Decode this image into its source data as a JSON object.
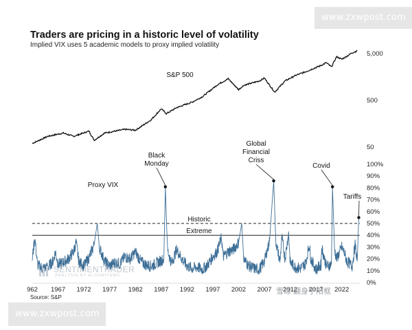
{
  "watermark_top": "www.zxwpost.com",
  "watermark_bottom": "www.zxwpost.com",
  "title": "Traders are pricing in a historic level of volatility",
  "subtitle": "Implied VIX uses 5 academic models to proxy implied volatility",
  "source": "Source: S&P",
  "brand": {
    "name": "SENTIMENTRADER",
    "tagline": "ANALYSIS BY ALGORITHMS"
  },
  "cn_watermark": "雪球 翻身宁阳框",
  "chart_data": [
    {
      "type": "line",
      "label": "S&P 500",
      "scale": "log",
      "ytick_labels": [
        "5,000",
        "500",
        "50"
      ],
      "ytick_values": [
        5000,
        500,
        50
      ],
      "x": [
        1962,
        1965,
        1968,
        1970,
        1973,
        1974,
        1976,
        1980,
        1982,
        1985,
        1987,
        1988,
        1990,
        1993,
        1995,
        1998,
        2000,
        2002,
        2003,
        2006,
        2007,
        2009,
        2011,
        2013,
        2015,
        2018,
        2019,
        2020,
        2021,
        2022,
        2023,
        2024,
        2025
      ],
      "y": [
        60,
        85,
        100,
        85,
        110,
        70,
        100,
        120,
        115,
        190,
        330,
        260,
        350,
        460,
        600,
        1100,
        1450,
        850,
        1050,
        1300,
        1500,
        750,
        1300,
        1700,
        2050,
        2800,
        3200,
        2600,
        4300,
        3800,
        4400,
        5200,
        5700
      ]
    },
    {
      "type": "line",
      "label": "Proxy VIX",
      "ylim": [
        0,
        100
      ],
      "ytick_labels": [
        "0%",
        "10%",
        "20%",
        "30%",
        "40%",
        "50%",
        "60%",
        "70%",
        "80%",
        "90%",
        "100%"
      ],
      "xtick_labels": [
        "962",
        "1967",
        "1972",
        "1977",
        "1982",
        "1987",
        "1992",
        "1997",
        "2002",
        "2007",
        "2012",
        "2017",
        "2022"
      ],
      "reference_lines": [
        {
          "label": "Historic",
          "value": 50,
          "style": "dashed"
        },
        {
          "label": "Extreme",
          "value": 40,
          "style": "solid"
        }
      ],
      "annotations": [
        {
          "label": "Black Monday",
          "x": 1987.8,
          "y": 81
        },
        {
          "label": "Global Financial Crisis",
          "x": 2008.8,
          "y": 86
        },
        {
          "label": "Covid",
          "x": 2020.2,
          "y": 81
        },
        {
          "label": "Tariffs",
          "x": 2025.3,
          "y": 55
        }
      ],
      "x": [
        1962,
        1962.5,
        1963,
        1964,
        1965,
        1966,
        1966.5,
        1967,
        1968,
        1969,
        1970,
        1970.5,
        1971,
        1972,
        1973,
        1974,
        1974.6,
        1975,
        1976,
        1977,
        1978,
        1979,
        1980,
        1981,
        1982,
        1983,
        1984,
        1985,
        1986,
        1987.5,
        1987.8,
        1988.2,
        1989,
        1990,
        1991,
        1992,
        1993,
        1994,
        1995,
        1996,
        1997,
        1997.8,
        1998.7,
        1999,
        2000,
        2001,
        2002,
        2002.6,
        2003,
        2004,
        2005,
        2006,
        2007,
        2008,
        2008.8,
        2009.2,
        2010,
        2010.4,
        2011,
        2011.7,
        2012,
        2013,
        2014,
        2015,
        2015.7,
        2016,
        2017,
        2018,
        2018.1,
        2019,
        2020,
        2020.2,
        2020.6,
        2021,
        2022,
        2022.5,
        2023,
        2024,
        2024.6,
        2025,
        2025.3
      ],
      "y": [
        20,
        38,
        15,
        12,
        13,
        18,
        26,
        15,
        17,
        20,
        26,
        34,
        18,
        14,
        21,
        32,
        50,
        30,
        18,
        14,
        17,
        16,
        22,
        20,
        26,
        18,
        15,
        14,
        16,
        20,
        81,
        28,
        16,
        28,
        20,
        14,
        12,
        13,
        11,
        15,
        22,
        26,
        38,
        22,
        26,
        28,
        34,
        50,
        20,
        14,
        12,
        11,
        18,
        35,
        86,
        35,
        18,
        38,
        20,
        42,
        17,
        13,
        12,
        16,
        32,
        20,
        11,
        15,
        30,
        14,
        15,
        81,
        28,
        20,
        30,
        25,
        18,
        14,
        32,
        18,
        55
      ]
    }
  ]
}
